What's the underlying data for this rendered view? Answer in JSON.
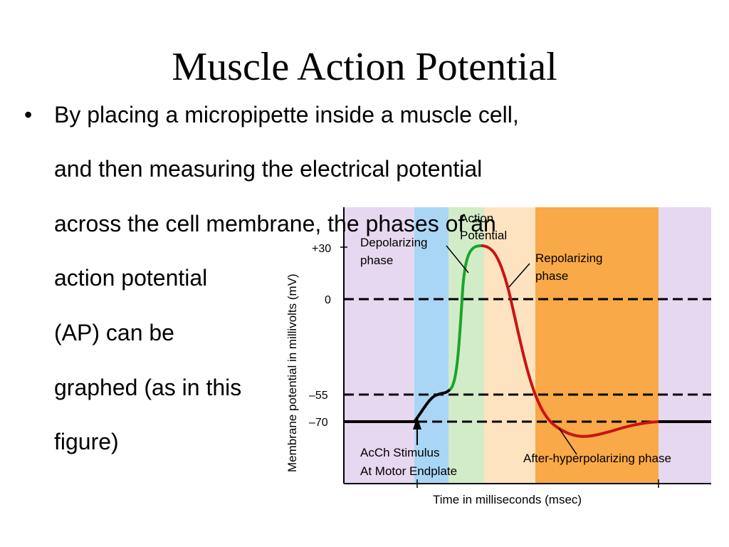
{
  "slide": {
    "title": "Muscle Action Potential",
    "bullet_symbol": "•",
    "bullet_lines": [
      "By placing a micropipette inside a muscle cell,",
      "and then measuring the electrical potential",
      "across the cell membrane, the phases of an",
      "action potential",
      "(AP) can be",
      "graphed (as in this",
      "figure)"
    ]
  },
  "figure": {
    "ylabel": "Membrane potential in millivolts (mV)",
    "xlabel": "Time in milliseconds (msec)",
    "y_ticks": [
      "+30",
      "0",
      "–55",
      "–70"
    ],
    "labels": {
      "depolarizing": [
        "Depolarizing",
        "phase"
      ],
      "action_potential": [
        "Action",
        "Potential"
      ],
      "repolarizing": [
        "Repolarizing",
        "phase"
      ],
      "stimulus": [
        "AcCh Stimulus",
        "At Motor Endplate"
      ],
      "after_hyper": "After-hyperpolarizing phase"
    },
    "colors": {
      "purple": "#e6d8f0",
      "blue": "#aad6f5",
      "green_band": "#d3ecc8",
      "peach": "#fde3c0",
      "orange": "#f9a947",
      "trace_green": "#1aa52a",
      "trace_red": "#c81414",
      "trace_black": "#000000"
    }
  }
}
